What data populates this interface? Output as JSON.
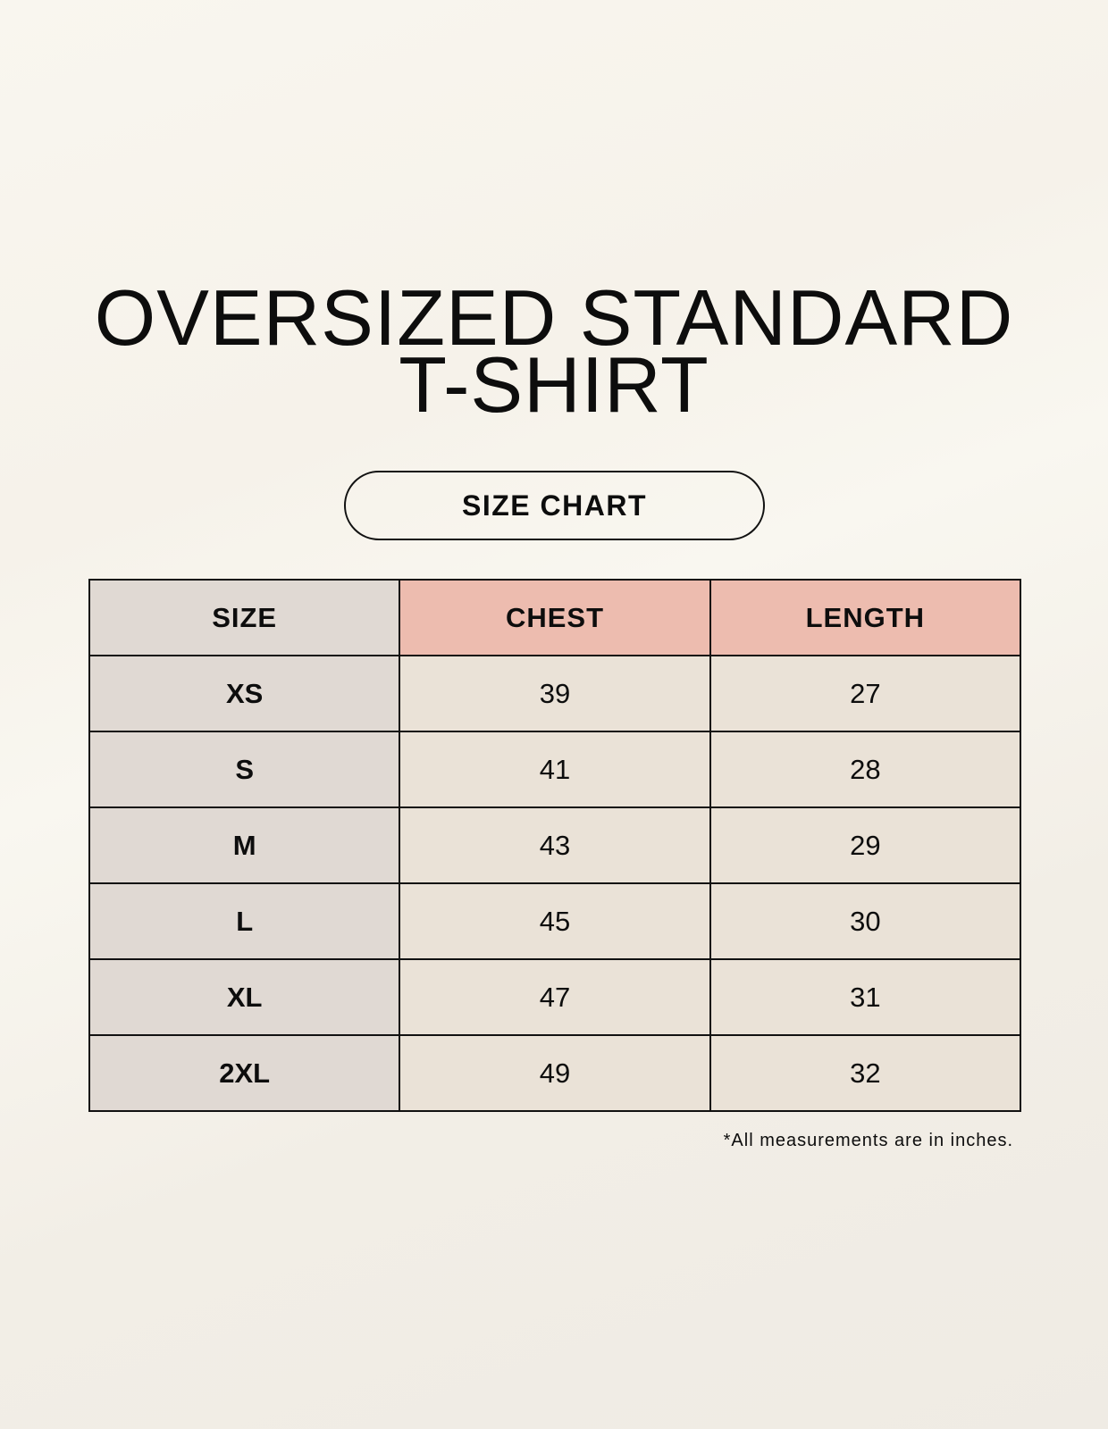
{
  "title": {
    "line1": "OVERSIZED STANDARD",
    "line2": "T-SHIRT"
  },
  "badge": "SIZE CHART",
  "table": {
    "headers": [
      "SIZE",
      "CHEST",
      "LENGTH"
    ],
    "rows": [
      [
        "XS",
        "39",
        "27"
      ],
      [
        "S",
        "41",
        "28"
      ],
      [
        "M",
        "43",
        "29"
      ],
      [
        "L",
        "45",
        "30"
      ],
      [
        "XL",
        "47",
        "31"
      ],
      [
        "2XL",
        "49",
        "32"
      ]
    ]
  },
  "footnote": "*All measurements are in inches.",
  "colors": {
    "size_column": "#e0d9d3",
    "header_accent": "#edbcaf",
    "value_cells": "#eae2d7"
  }
}
